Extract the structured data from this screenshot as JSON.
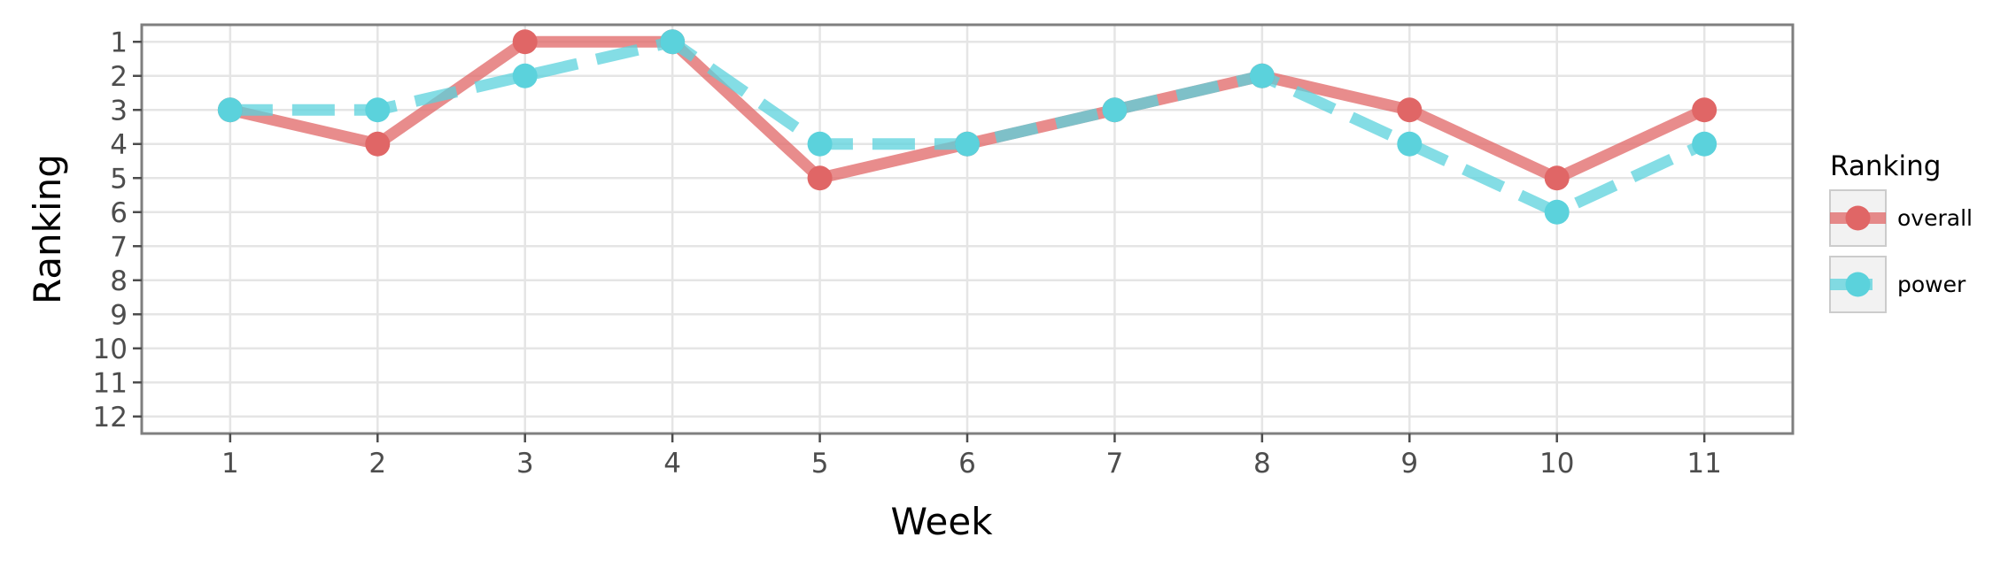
{
  "chart_data": {
    "type": "line",
    "xlabel": "Week",
    "ylabel": "Ranking",
    "x": [
      1,
      2,
      3,
      4,
      5,
      6,
      7,
      8,
      9,
      10,
      11
    ],
    "x_ticks": [
      1,
      2,
      3,
      4,
      5,
      6,
      7,
      8,
      9,
      10,
      11
    ],
    "y_ticks": [
      1,
      2,
      3,
      4,
      5,
      6,
      7,
      8,
      9,
      10,
      11,
      12
    ],
    "xlim": [
      0.4,
      11.6
    ],
    "ylim": [
      12.5,
      0.5
    ],
    "y_reversed": true,
    "grid": true,
    "legend": {
      "title": "Ranking",
      "placement": "right"
    },
    "series": [
      {
        "name": "overall",
        "color": "#e06666",
        "line_style": "solid",
        "values": [
          3,
          4,
          1,
          1,
          5,
          4,
          3,
          2,
          3,
          5,
          3
        ]
      },
      {
        "name": "power",
        "color": "#5bd2dc",
        "line_style": "dashed",
        "values": [
          3,
          3,
          2,
          1,
          4,
          4,
          3,
          2,
          4,
          6,
          4
        ]
      }
    ]
  }
}
